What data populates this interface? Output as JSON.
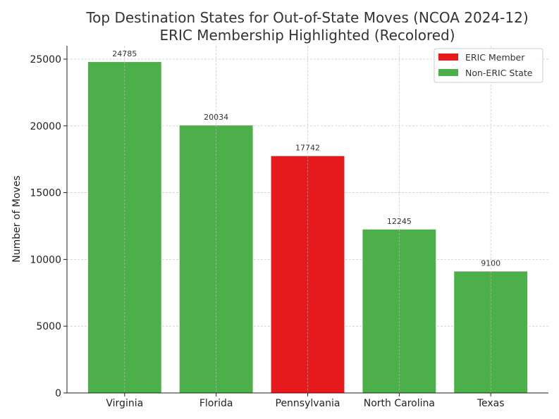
{
  "chart_data": {
    "type": "bar",
    "title": "Top Destination States for Out-of-State Moves (NCOA 2024-12)",
    "subtitle": "ERIC Membership Highlighted (Recolored)",
    "xlabel": "",
    "ylabel": "Number of Moves",
    "categories": [
      "Virginia",
      "Florida",
      "Pennsylvania",
      "North Carolina",
      "Texas"
    ],
    "values": [
      24785,
      20034,
      17742,
      12245,
      9100
    ],
    "eric_member": [
      false,
      false,
      true,
      false,
      false
    ],
    "ylim": [
      0,
      26000
    ],
    "yticks": [
      0,
      5000,
      10000,
      15000,
      20000,
      25000
    ],
    "grid": true,
    "legend": {
      "position": "top-right",
      "entries": [
        {
          "label": "ERIC Member",
          "color": "#e41a1c"
        },
        {
          "label": "Non-ERIC State",
          "color": "#4daf4a"
        }
      ]
    }
  }
}
